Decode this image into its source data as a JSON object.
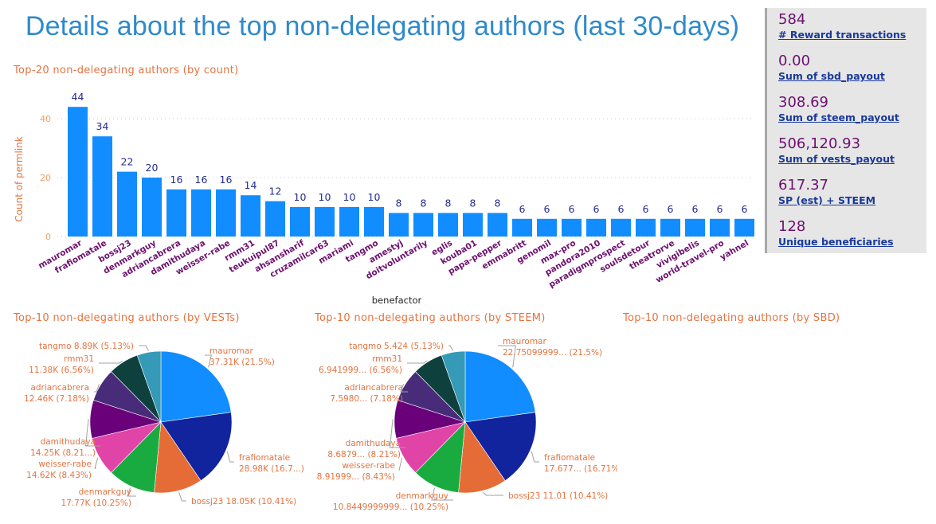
{
  "page": {
    "title": "Details about the top non-delegating authors (last 30-days)"
  },
  "kpis": [
    {
      "value": "584",
      "label": "# Reward transactions"
    },
    {
      "value": "0.00",
      "label": "Sum of sbd_payout"
    },
    {
      "value": "308.69",
      "label": "Sum of steem_payout"
    },
    {
      "value": "506,120.93",
      "label": "Sum of vests_payout"
    },
    {
      "value": "617.37",
      "label": "SP (est) + STEEM"
    },
    {
      "value": "128",
      "label": "Unique beneficiaries"
    }
  ],
  "colors": {
    "bar": "#118DFF",
    "data_label": "#252C8F",
    "axis_tick": "#F0A06A",
    "axis_title": "#E5733F",
    "category_label": "#6E1070",
    "section_title": "#E5733F",
    "pie_palette": [
      "#118DFF",
      "#12239E",
      "#E66C37",
      "#1AAB40",
      "#E044A7",
      "#6B007B",
      "#482C7A",
      "#0E413E",
      "#3599B8",
      "#4AC5BB"
    ]
  },
  "chart_data": [
    {
      "type": "bar",
      "title": "Top-20 non-delegating authors (by count)",
      "xlabel": "benefactor",
      "ylabel": "Count of permlink",
      "ylim": [
        0,
        44
      ],
      "yticks": [
        0,
        20,
        40
      ],
      "grid": true,
      "categories": [
        "mauromar",
        "frafiomatale",
        "bossj23",
        "denmarkguy",
        "adriancabrera",
        "damithudaya",
        "weisser-rabe",
        "rmm31",
        "teukuipul87",
        "ahsansharif",
        "cruzamilcar63",
        "mariami",
        "tangmo",
        "amestyj",
        "doitvoluntarily",
        "eglis",
        "kouba01",
        "papa-pepper",
        "emmabritt",
        "genomil",
        "max-pro",
        "pandora2010",
        "paradigmprospect",
        "soulsdetour",
        "theatrorve",
        "vivigibelis",
        "world-travel-pro",
        "yahnel"
      ],
      "values": [
        44,
        34,
        22,
        20,
        16,
        16,
        16,
        14,
        12,
        10,
        10,
        10,
        10,
        8,
        8,
        8,
        8,
        8,
        6,
        6,
        6,
        6,
        6,
        6,
        6,
        6,
        6,
        6
      ]
    },
    {
      "type": "pie",
      "title": "Top-10 non-delegating authors (by VESTs)",
      "slices": [
        {
          "name": "mauromar",
          "value": 37310,
          "value_label": "37.31K",
          "percent_label": "21.5%"
        },
        {
          "name": "frafiomatale",
          "value": 28980,
          "value_label": "28.98K",
          "percent_label": "16.7..."
        },
        {
          "name": "bossj23",
          "value": 18050,
          "value_label": "18.05K",
          "percent_label": "10.41%"
        },
        {
          "name": "denmarkguy",
          "value": 17770,
          "value_label": "17.77K",
          "percent_label": "10.25%"
        },
        {
          "name": "weisser-rabe",
          "value": 14620,
          "value_label": "14.62K",
          "percent_label": "8.43%"
        },
        {
          "name": "damithudaya",
          "value": 14250,
          "value_label": "14.25K",
          "percent_label": "8.21..."
        },
        {
          "name": "adriancabrera",
          "value": 12460,
          "value_label": "12.46K",
          "percent_label": "7.18%"
        },
        {
          "name": "rmm31",
          "value": 11380,
          "value_label": "11.38K",
          "percent_label": "6.56%"
        },
        {
          "name": "tangmo",
          "value": 8890,
          "value_label": "8.89K",
          "percent_label": "5.13%"
        }
      ]
    },
    {
      "type": "pie",
      "title": "Top-10 non-delegating authors (by STEEM)",
      "slices": [
        {
          "name": "mauromar",
          "value": 22.751,
          "value_label": "22.75099999...",
          "percent_label": "21.5%"
        },
        {
          "name": "frafiomatale",
          "value": 17.677,
          "value_label": "17.677...",
          "percent_label": "16.71%"
        },
        {
          "name": "bossj23",
          "value": 11.01,
          "value_label": "11.01",
          "percent_label": "10.41%"
        },
        {
          "name": "denmarkguy",
          "value": 10.845,
          "value_label": "10.8449999999...",
          "percent_label": "10.25%"
        },
        {
          "name": "weisser-rabe",
          "value": 8.92,
          "value_label": "8.91999...",
          "percent_label": "8.43%"
        },
        {
          "name": "damithudaya",
          "value": 8.688,
          "value_label": "8.6879...",
          "percent_label": "8.21%"
        },
        {
          "name": "adriancabrera",
          "value": 7.598,
          "value_label": "7.5980...",
          "percent_label": "7.18%"
        },
        {
          "name": "rmm31",
          "value": 6.942,
          "value_label": "6.941999...",
          "percent_label": "6.56%"
        },
        {
          "name": "tangmo",
          "value": 5.424,
          "value_label": "5.424",
          "percent_label": "5.13%"
        }
      ]
    },
    {
      "type": "pie",
      "title": "Top-10 non-delegating authors (by SBD)",
      "slices": []
    }
  ]
}
